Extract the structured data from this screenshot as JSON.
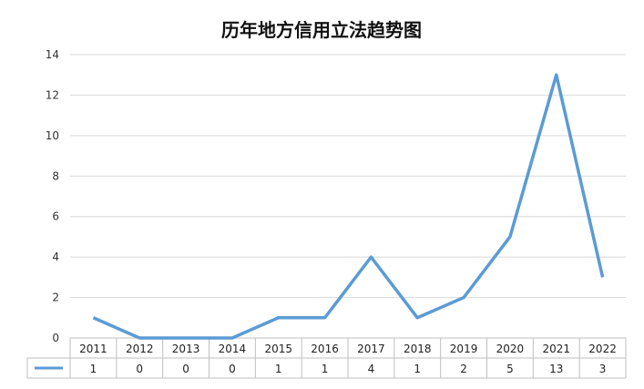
{
  "chart_data": {
    "type": "line",
    "title": "历年地方信用立法趋势图",
    "xlabel": "",
    "ylabel": "",
    "categories": [
      "2011",
      "2012",
      "2013",
      "2014",
      "2015",
      "2016",
      "2017",
      "2018",
      "2019",
      "2020",
      "2021",
      "2022"
    ],
    "series": [
      {
        "values": [
          1,
          0,
          0,
          0,
          1,
          1,
          4,
          1,
          2,
          5,
          13,
          3
        ],
        "color": "#5b9bd5"
      }
    ],
    "ylim": [
      0,
      14
    ],
    "yticks": [
      0,
      2,
      4,
      6,
      8,
      10,
      12,
      14
    ],
    "grid": true,
    "data_table": true,
    "colors": {
      "gridline": "#d9d9d9",
      "table_border": "#bfbfbf",
      "series": "#5b9bd5"
    }
  }
}
